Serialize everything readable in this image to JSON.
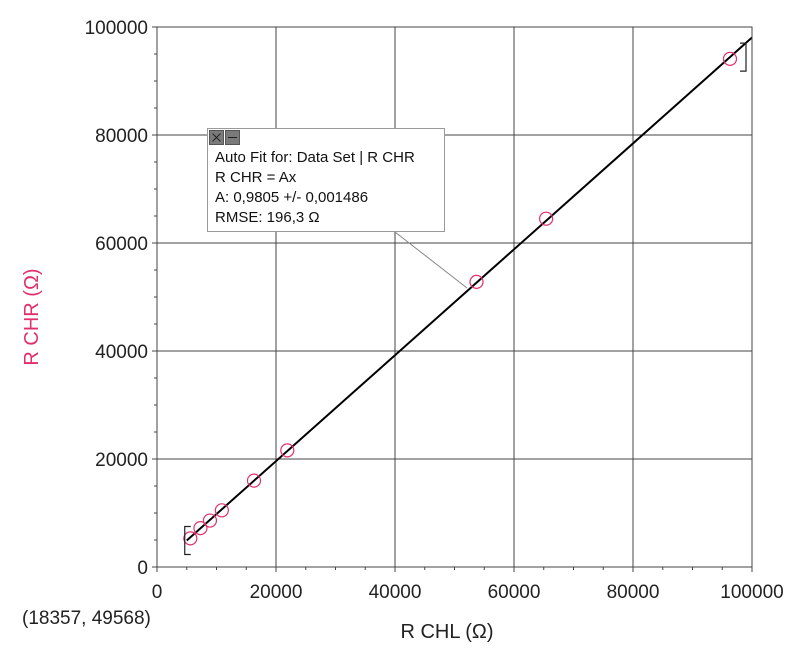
{
  "chart_data": {
    "type": "scatter",
    "xlabel": "R CHL (Ω)",
    "ylabel": "R CHR (Ω)",
    "xlim": [
      0,
      100000
    ],
    "ylim": [
      0,
      100000
    ],
    "xticks": [
      "0",
      "20000",
      "40000",
      "60000",
      "80000",
      "100000"
    ],
    "yticks": [
      "0",
      "20000",
      "40000",
      "60000",
      "80000",
      "100000"
    ],
    "grid": true,
    "series": [
      {
        "points": [
          {
            "x": 5600,
            "y": 5300
          },
          {
            "x": 7300,
            "y": 7200
          },
          {
            "x": 8900,
            "y": 8600
          },
          {
            "x": 10900,
            "y": 10500
          },
          {
            "x": 16300,
            "y": 16000
          },
          {
            "x": 21900,
            "y": 21600
          },
          {
            "x": 53700,
            "y": 52800
          },
          {
            "x": 65400,
            "y": 64500
          },
          {
            "x": 96300,
            "y": 94100
          }
        ],
        "color": "#e0306a"
      }
    ],
    "fit": {
      "slope": 0.9805,
      "x_range": [
        5000,
        100000
      ],
      "color": "#000000"
    },
    "fit_box": {
      "line1": "Auto Fit for: Data Set | R CHR",
      "line2": "R CHR = Ax",
      "line3": "A: 0,9805 +/- 0,001486",
      "line4": "RMSE: 196,3 Ω"
    },
    "coordinate_readout": "(18357, 49568)",
    "ylabel_color": "#e0306a"
  }
}
